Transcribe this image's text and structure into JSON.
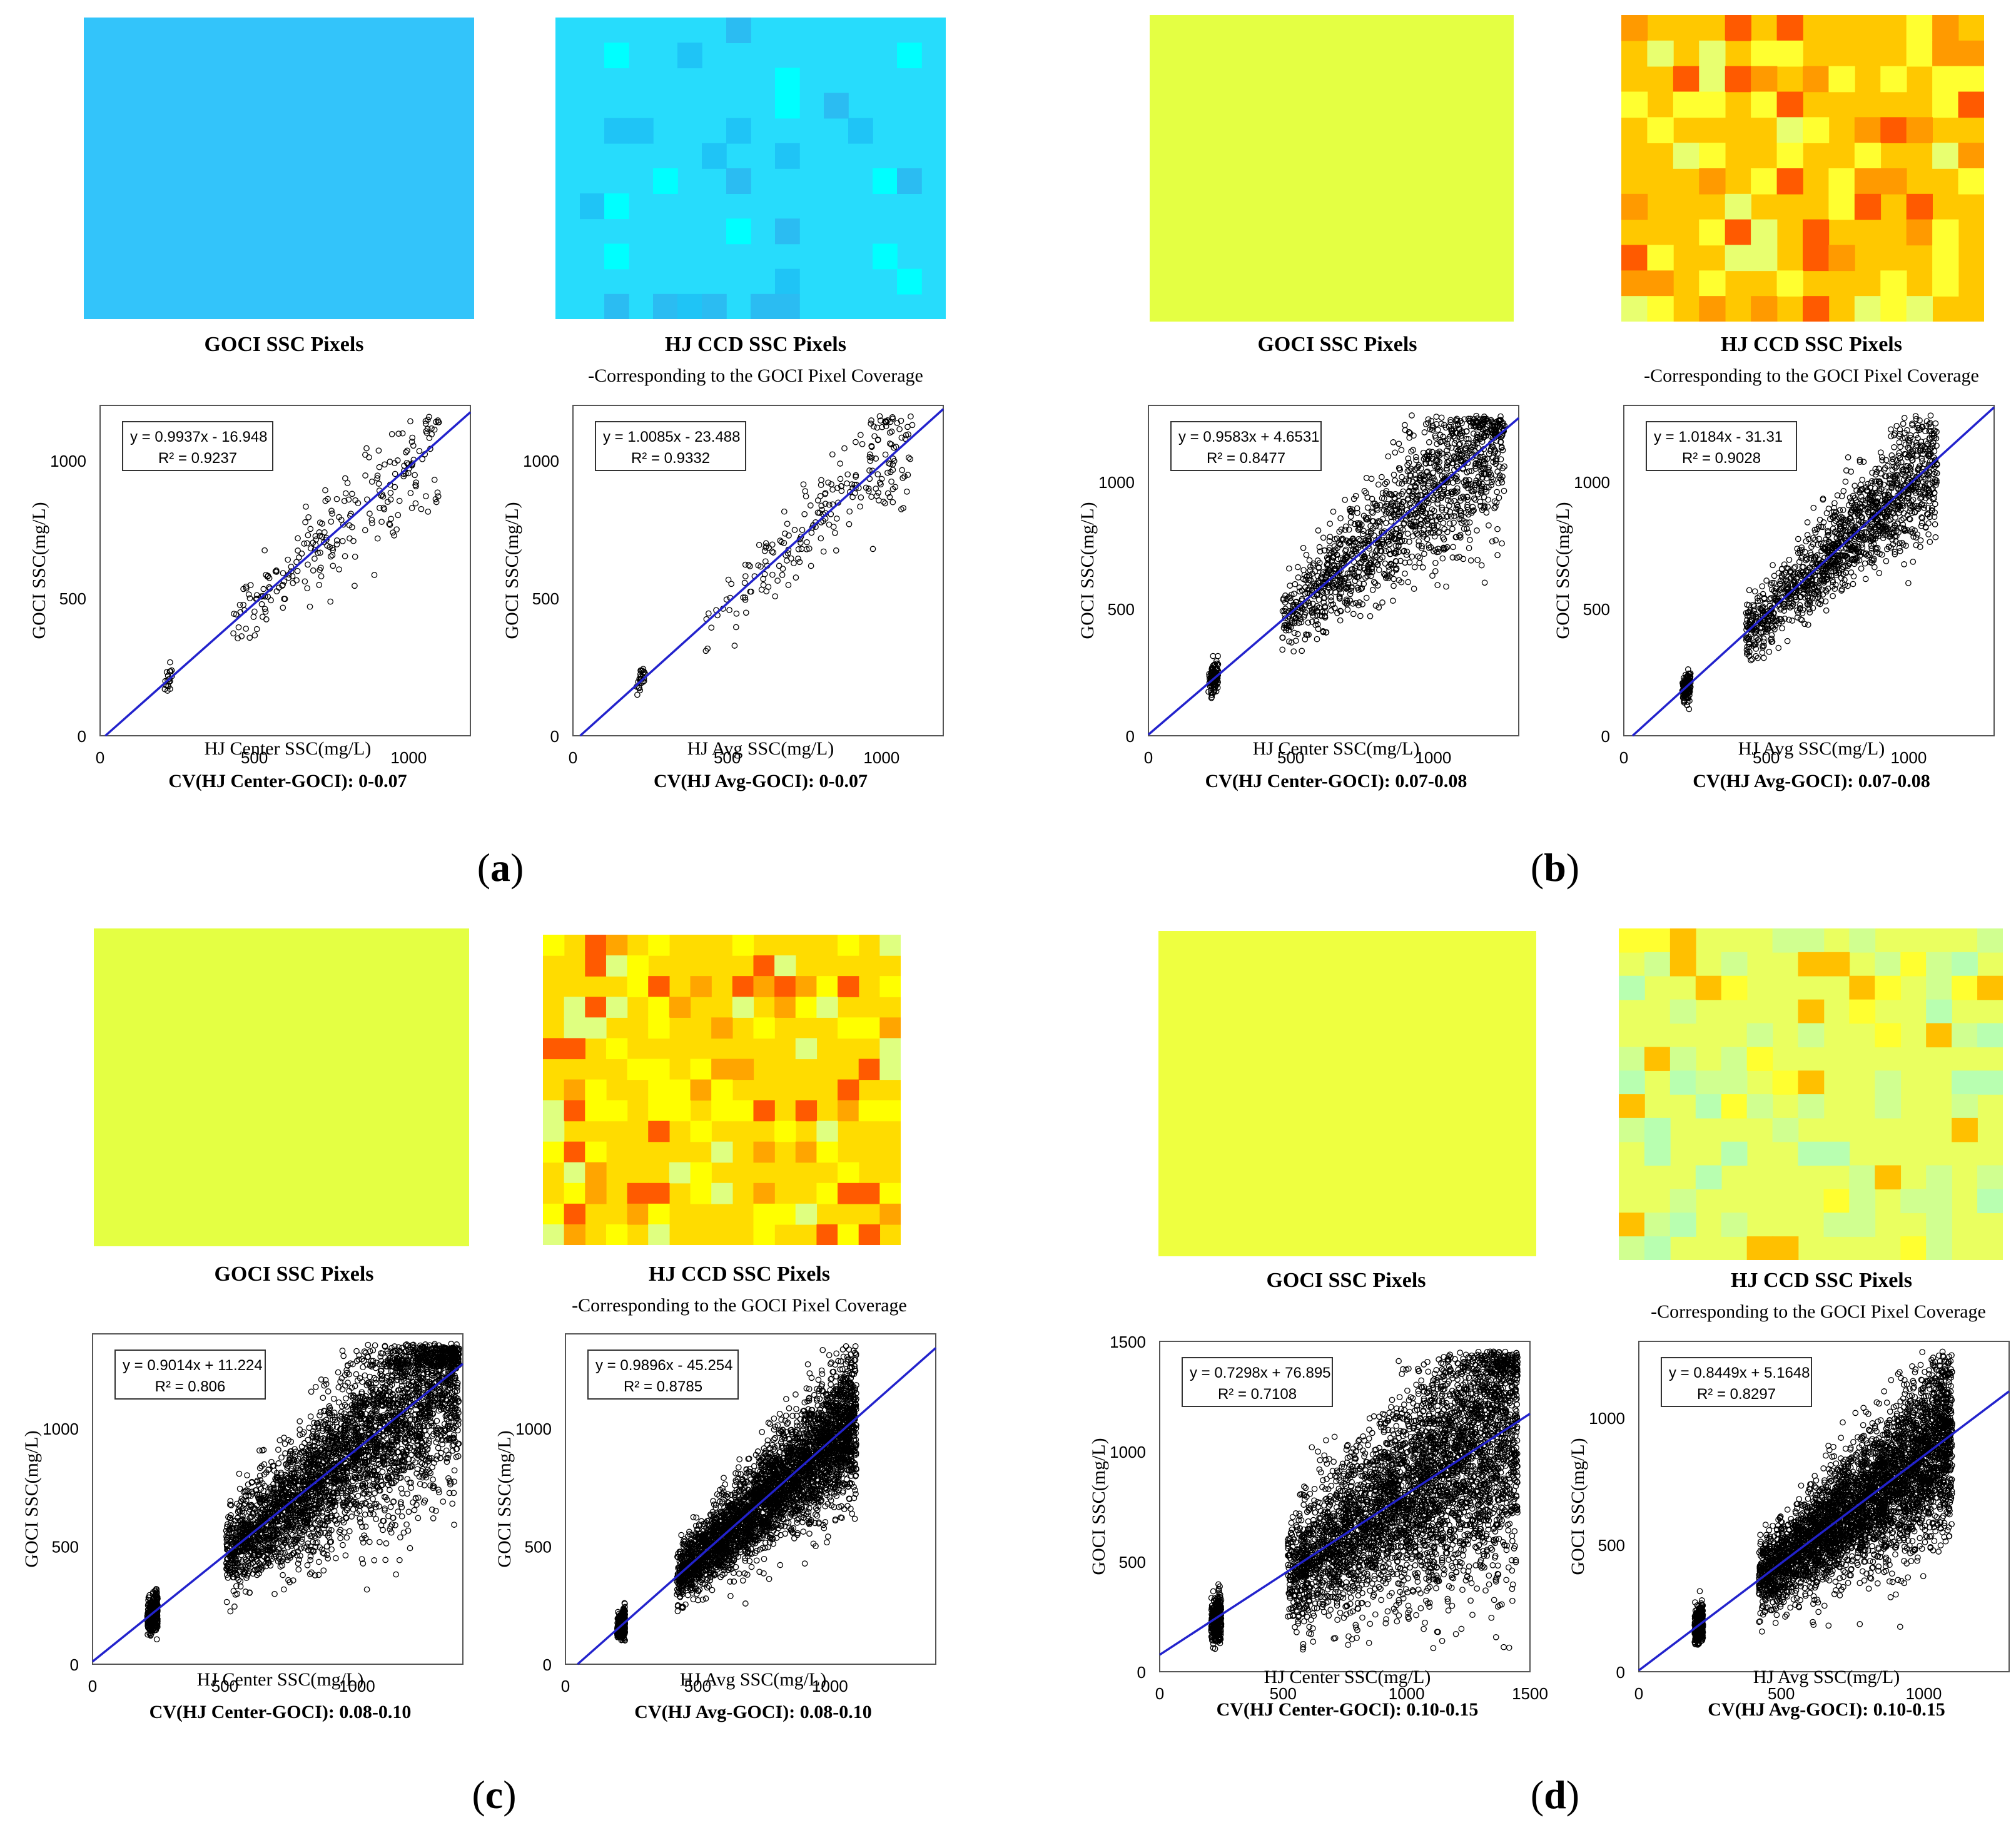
{
  "captions": {
    "goci": "GOCI SSC Pixels",
    "hj": "HJ CCD SSC Pixels",
    "hj_sub": "-Corresponding to the GOCI Pixel Coverage"
  },
  "colors": {
    "regression_line": "#2222cc",
    "points": "#000000",
    "a_goci": "#33c4fa",
    "a_hj_base": "#27dcfc",
    "a_hj_alt": [
      "#1fc4f6",
      "#2bbcf2",
      "#00ffff"
    ],
    "b_goci": "#e4ff43",
    "b_hj_base": "#ffc800",
    "b_hj_alt": [
      "#ffff30",
      "#ff9a00",
      "#ff5a00",
      "#e8ff70"
    ],
    "c_goci": "#e4ff43",
    "c_hj_base": "#ffdc00",
    "c_hj_alt": [
      "#ffff00",
      "#ffa500",
      "#dfff80",
      "#ff5a00"
    ],
    "d_goci": "#eeff40",
    "d_hj_base": "#eaff60",
    "d_hj_alt": [
      "#d0ff90",
      "#b8ffb0",
      "#ffc000",
      "#ffff30"
    ]
  },
  "panels": [
    {
      "label": "a",
      "center": {
        "equation": "y = 0.9937x - 16.948",
        "r2": "R² = 0.9237",
        "xlabel": "HJ Center SSC(mg/L)",
        "ylabel": "GOCI SSC(mg/L)",
        "cv": "CV(HJ Center-GOCI): 0-0.07"
      },
      "avg": {
        "equation": "y = 1.0085x - 23.488",
        "r2": "R² = 0.9332",
        "xlabel": "HJ Avg SSC(mg/L)",
        "ylabel": "GOCI SSC(mg/L)",
        "cv": "CV(HJ Avg-GOCI): 0-0.07"
      }
    },
    {
      "label": "b",
      "center": {
        "equation": "y = 0.9583x + 4.6531",
        "r2": "R² = 0.8477",
        "xlabel": "HJ Center SSC(mg/L)",
        "ylabel": "GOCI SSC(mg/L)",
        "cv": "CV(HJ Center-GOCI): 0.07-0.08"
      },
      "avg": {
        "equation": "y = 1.0184x - 31.31",
        "r2": "R² = 0.9028",
        "xlabel": "HJ Avg SSC(mg/L)",
        "ylabel": "GOCI SSC(mg/L)",
        "cv": "CV(HJ Avg-GOCI): 0.07-0.08"
      }
    },
    {
      "label": "c",
      "center": {
        "equation": "y = 0.9014x + 11.224",
        "r2": "R² = 0.806",
        "xlabel": "HJ Center SSC(mg/L)",
        "ylabel": "GOCI SSC(mg/L)",
        "cv": "CV(HJ Center-GOCI): 0.08-0.10"
      },
      "avg": {
        "equation": "y = 0.9896x - 45.254",
        "r2": "R² = 0.8785",
        "xlabel": "HJ Avg SSC(mg/L)",
        "ylabel": "GOCI SSC(mg/L)",
        "cv": "CV(HJ Avg-GOCI): 0.08-0.10"
      }
    },
    {
      "label": "d",
      "center": {
        "equation": "y = 0.7298x + 76.895",
        "r2": "R² = 0.7108",
        "xlabel": "HJ Center SSC(mg/L)",
        "ylabel": "GOCI SSC(mg/L)",
        "cv": "CV(HJ Center-GOCI): 0.10-0.15"
      },
      "avg": {
        "equation": "y = 0.8449x + 5.1648",
        "r2": "R² = 0.8297",
        "xlabel": "HJ Avg SSC(mg/L)",
        "ylabel": "GOCI SSC(mg/L)",
        "cv": "CV(HJ Avg-GOCI): 0.10-0.15"
      }
    }
  ],
  "chart_data": [
    {
      "type": "scatter",
      "panel": "a-center",
      "slope": 0.9937,
      "intercept": -16.948,
      "xlim": [
        0,
        1200
      ],
      "ylim": [
        0,
        1200
      ],
      "xticks": [
        "0",
        "500",
        "1000"
      ],
      "yticks": [
        "0",
        "500",
        "1000"
      ],
      "n_points": 260,
      "x_range": [
        170,
        1100
      ]
    },
    {
      "type": "scatter",
      "panel": "a-avg",
      "slope": 1.0085,
      "intercept": -23.488,
      "xlim": [
        0,
        1200
      ],
      "ylim": [
        0,
        1200
      ],
      "xticks": [
        "0",
        "500",
        "1000"
      ],
      "yticks": [
        "0",
        "500",
        "1000"
      ],
      "n_points": 260,
      "x_range": [
        170,
        1100
      ]
    },
    {
      "type": "scatter",
      "panel": "b-center",
      "slope": 0.9583,
      "intercept": 4.6531,
      "xlim": [
        0,
        1300
      ],
      "ylim": [
        0,
        1300
      ],
      "xticks": [
        "0",
        "500",
        "1000"
      ],
      "yticks": [
        "0",
        "500",
        "1000"
      ],
      "n_points": 1500,
      "x_range": [
        170,
        1250
      ]
    },
    {
      "type": "scatter",
      "panel": "b-avg",
      "slope": 1.0184,
      "intercept": -31.31,
      "xlim": [
        0,
        1300
      ],
      "ylim": [
        0,
        1300
      ],
      "xticks": [
        "0",
        "500",
        "1000"
      ],
      "yticks": [
        "0",
        "500",
        "1000"
      ],
      "n_points": 1500,
      "x_range": [
        170,
        1100
      ]
    },
    {
      "type": "scatter",
      "panel": "c-center",
      "slope": 0.9014,
      "intercept": 11.224,
      "xlim": [
        0,
        1400
      ],
      "ylim": [
        0,
        1400
      ],
      "xticks": [
        "0",
        "500",
        "1000"
      ],
      "yticks": [
        "0",
        "500",
        "1000"
      ],
      "n_points": 4000,
      "x_range": [
        160,
        1400
      ]
    },
    {
      "type": "scatter",
      "panel": "c-avg",
      "slope": 0.9896,
      "intercept": -45.254,
      "xlim": [
        0,
        1400
      ],
      "ylim": [
        0,
        1400
      ],
      "xticks": [
        "0",
        "500",
        "1000"
      ],
      "yticks": [
        "0",
        "500",
        "1000"
      ],
      "n_points": 4000,
      "x_range": [
        160,
        1100
      ]
    },
    {
      "type": "scatter",
      "panel": "d-center",
      "slope": 0.7298,
      "intercept": 76.895,
      "xlim": [
        0,
        1500
      ],
      "ylim": [
        0,
        1500
      ],
      "xticks": [
        "0",
        "500",
        "1000",
        "1500"
      ],
      "yticks": [
        "0",
        "500",
        "1000",
        "1500"
      ],
      "n_points": 4500,
      "x_range": [
        160,
        1450
      ]
    },
    {
      "type": "scatter",
      "panel": "d-avg",
      "slope": 0.8449,
      "intercept": 5.1648,
      "xlim": [
        0,
        1300
      ],
      "ylim": [
        0,
        1300
      ],
      "xticks": [
        "0",
        "500",
        "1000"
      ],
      "yticks": [
        "0",
        "500",
        "1000"
      ],
      "n_points": 4500,
      "x_range": [
        160,
        1100
      ]
    }
  ]
}
